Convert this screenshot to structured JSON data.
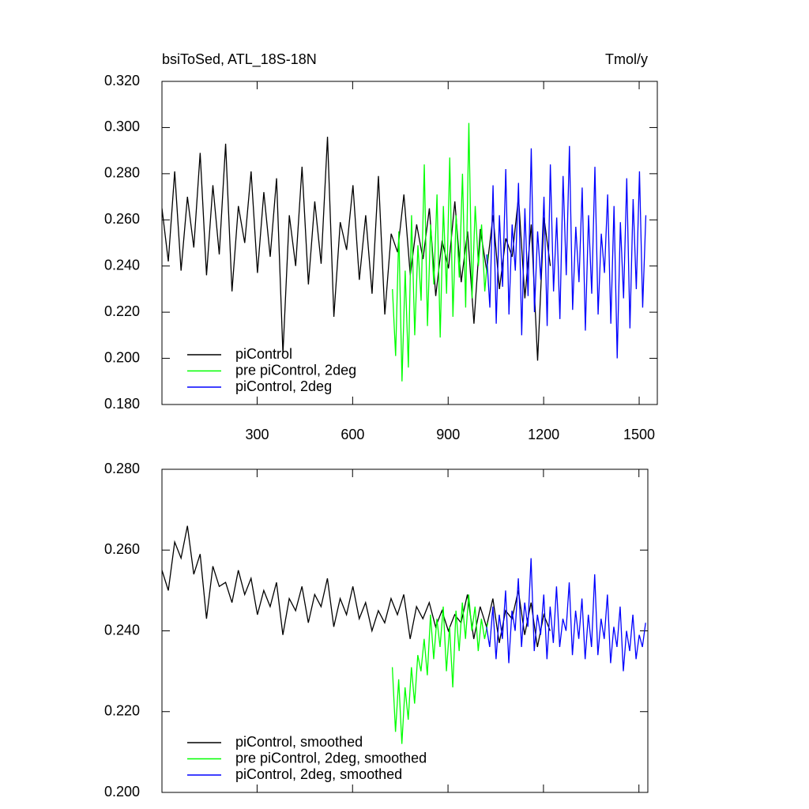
{
  "chart_data": [
    {
      "type": "line",
      "title": "bsiToSed, ATL_18S-18N",
      "units": "Tmol/y",
      "xlim": [
        1,
        1557
      ],
      "xticks": [
        300,
        600,
        900,
        1200,
        1500
      ],
      "ylim": [
        0.18,
        0.32
      ],
      "yticks": [
        {
          "value": 0.18,
          "label": "0.180"
        },
        {
          "value": 0.2,
          "label": "0.200"
        },
        {
          "value": 0.22,
          "label": "0.220"
        },
        {
          "value": 0.24,
          "label": "0.240"
        },
        {
          "value": 0.26,
          "label": "0.260"
        },
        {
          "value": 0.28,
          "label": "0.280"
        },
        {
          "value": 0.3,
          "label": "0.300"
        },
        {
          "value": 0.32,
          "label": "0.320"
        }
      ],
      "xtick_labels": true,
      "legend": "lower-left",
      "series": [
        {
          "name": "piControl",
          "color": "#000000",
          "x": [
            1,
            21,
            41,
            61,
            81,
            101,
            121,
            141,
            161,
            181,
            201,
            221,
            241,
            261,
            281,
            301,
            321,
            341,
            361,
            381,
            401,
            421,
            441,
            461,
            481,
            501,
            521,
            541,
            561,
            581,
            601,
            621,
            641,
            661,
            681,
            701,
            721,
            741,
            761,
            781,
            801,
            821,
            841,
            861,
            881,
            901,
            921,
            941,
            961,
            981,
            1001,
            1021,
            1041,
            1061,
            1081,
            1101,
            1121,
            1141,
            1161,
            1181,
            1201,
            1221
          ],
          "values": [
            0.265,
            0.242,
            0.281,
            0.238,
            0.27,
            0.248,
            0.289,
            0.236,
            0.275,
            0.245,
            0.293,
            0.229,
            0.266,
            0.25,
            0.281,
            0.237,
            0.272,
            0.244,
            0.278,
            0.202,
            0.262,
            0.24,
            0.283,
            0.232,
            0.268,
            0.241,
            0.296,
            0.218,
            0.259,
            0.247,
            0.275,
            0.234,
            0.262,
            0.228,
            0.279,
            0.219,
            0.254,
            0.246,
            0.271,
            0.236,
            0.258,
            0.243,
            0.265,
            0.227,
            0.251,
            0.239,
            0.268,
            0.233,
            0.255,
            0.215,
            0.256,
            0.238,
            0.262,
            0.23,
            0.252,
            0.244,
            0.27,
            0.226,
            0.258,
            0.199,
            0.261,
            0.24
          ]
        },
        {
          "name": "pre piControl, 2deg",
          "color": "#00ff00",
          "x": [
            725,
            735,
            745,
            755,
            765,
            775,
            785,
            795,
            805,
            815,
            825,
            835,
            845,
            855,
            865,
            875,
            885,
            895,
            905,
            915,
            925,
            935,
            945,
            955,
            965,
            975,
            985,
            995,
            1005,
            1015,
            1025
          ],
          "values": [
            0.23,
            0.201,
            0.255,
            0.19,
            0.238,
            0.196,
            0.262,
            0.21,
            0.249,
            0.225,
            0.284,
            0.214,
            0.258,
            0.232,
            0.271,
            0.209,
            0.266,
            0.228,
            0.287,
            0.218,
            0.262,
            0.235,
            0.28,
            0.222,
            0.302,
            0.226,
            0.266,
            0.24,
            0.258,
            0.229,
            0.245
          ]
        },
        {
          "name": "piControl, 2deg",
          "color": "#0000ff",
          "x": [
            1021,
            1031,
            1041,
            1051,
            1061,
            1071,
            1081,
            1091,
            1101,
            1111,
            1121,
            1131,
            1141,
            1151,
            1161,
            1171,
            1181,
            1191,
            1201,
            1211,
            1221,
            1231,
            1241,
            1251,
            1261,
            1271,
            1281,
            1291,
            1301,
            1311,
            1321,
            1331,
            1341,
            1351,
            1361,
            1371,
            1381,
            1391,
            1401,
            1411,
            1421,
            1431,
            1441,
            1451,
            1461,
            1471,
            1481,
            1491,
            1501,
            1511,
            1521
          ],
          "values": [
            0.245,
            0.222,
            0.275,
            0.215,
            0.262,
            0.231,
            0.282,
            0.219,
            0.258,
            0.238,
            0.276,
            0.21,
            0.265,
            0.227,
            0.291,
            0.22,
            0.255,
            0.234,
            0.27,
            0.214,
            0.284,
            0.229,
            0.261,
            0.217,
            0.279,
            0.236,
            0.292,
            0.221,
            0.257,
            0.233,
            0.274,
            0.212,
            0.262,
            0.228,
            0.283,
            0.219,
            0.254,
            0.237,
            0.271,
            0.215,
            0.266,
            0.2,
            0.259,
            0.226,
            0.278,
            0.213,
            0.269,
            0.23,
            0.281,
            0.222,
            0.262
          ]
        }
      ]
    },
    {
      "type": "line",
      "xlim": [
        1,
        1528
      ],
      "xticks": [
        300,
        600,
        900,
        1200,
        1500
      ],
      "ylim": [
        0.2,
        0.28
      ],
      "yticks": [
        {
          "value": 0.2,
          "label": "0.200"
        },
        {
          "value": 0.22,
          "label": "0.220"
        },
        {
          "value": 0.24,
          "label": "0.240"
        },
        {
          "value": 0.26,
          "label": "0.260"
        },
        {
          "value": 0.28,
          "label": "0.280"
        }
      ],
      "xtick_labels": false,
      "legend": "lower-left",
      "series": [
        {
          "name": "piControl, smoothed",
          "color": "#000000",
          "x": [
            1,
            21,
            41,
            61,
            81,
            101,
            121,
            141,
            161,
            181,
            201,
            221,
            241,
            261,
            281,
            301,
            321,
            341,
            361,
            381,
            401,
            421,
            441,
            461,
            481,
            501,
            521,
            541,
            561,
            581,
            601,
            621,
            641,
            661,
            681,
            701,
            721,
            741,
            761,
            781,
            801,
            821,
            841,
            861,
            881,
            901,
            921,
            941,
            961,
            981,
            1001,
            1021,
            1041,
            1061,
            1081,
            1101,
            1121,
            1141,
            1161,
            1181,
            1201,
            1221
          ],
          "values": [
            0.255,
            0.25,
            0.262,
            0.258,
            0.266,
            0.254,
            0.259,
            0.243,
            0.256,
            0.251,
            0.252,
            0.247,
            0.255,
            0.249,
            0.253,
            0.244,
            0.25,
            0.246,
            0.252,
            0.239,
            0.248,
            0.245,
            0.251,
            0.242,
            0.249,
            0.246,
            0.253,
            0.241,
            0.248,
            0.244,
            0.251,
            0.243,
            0.247,
            0.24,
            0.245,
            0.242,
            0.248,
            0.244,
            0.249,
            0.238,
            0.246,
            0.243,
            0.247,
            0.241,
            0.245,
            0.24,
            0.244,
            0.242,
            0.249,
            0.238,
            0.246,
            0.241,
            0.248,
            0.237,
            0.245,
            0.243,
            0.25,
            0.239,
            0.247,
            0.236,
            0.244,
            0.24
          ]
        },
        {
          "name": "pre piControl, 2deg, smoothed",
          "color": "#00ff00",
          "x": [
            725,
            735,
            745,
            755,
            765,
            775,
            785,
            795,
            805,
            815,
            825,
            835,
            845,
            855,
            865,
            875,
            885,
            895,
            905,
            915,
            925,
            935,
            945,
            955,
            965,
            975,
            985,
            995,
            1005,
            1015,
            1025
          ],
          "values": [
            0.231,
            0.215,
            0.228,
            0.212,
            0.226,
            0.218,
            0.231,
            0.222,
            0.234,
            0.23,
            0.238,
            0.229,
            0.244,
            0.233,
            0.243,
            0.236,
            0.246,
            0.23,
            0.241,
            0.226,
            0.245,
            0.235,
            0.247,
            0.238,
            0.249,
            0.24,
            0.246,
            0.235,
            0.243,
            0.238,
            0.242
          ]
        },
        {
          "name": "piControl, 2deg, smoothed",
          "color": "#0000ff",
          "x": [
            1021,
            1031,
            1041,
            1051,
            1061,
            1071,
            1081,
            1091,
            1101,
            1111,
            1121,
            1131,
            1141,
            1151,
            1161,
            1171,
            1181,
            1191,
            1201,
            1211,
            1221,
            1231,
            1241,
            1251,
            1261,
            1271,
            1281,
            1291,
            1301,
            1311,
            1321,
            1331,
            1341,
            1351,
            1361,
            1371,
            1381,
            1391,
            1401,
            1411,
            1421,
            1431,
            1441,
            1451,
            1461,
            1471,
            1481,
            1491,
            1501,
            1511,
            1521
          ],
          "values": [
            0.241,
            0.236,
            0.246,
            0.233,
            0.244,
            0.238,
            0.25,
            0.232,
            0.245,
            0.24,
            0.253,
            0.236,
            0.247,
            0.241,
            0.258,
            0.235,
            0.244,
            0.239,
            0.249,
            0.233,
            0.246,
            0.237,
            0.251,
            0.236,
            0.243,
            0.24,
            0.252,
            0.234,
            0.245,
            0.238,
            0.248,
            0.233,
            0.244,
            0.236,
            0.254,
            0.234,
            0.243,
            0.238,
            0.249,
            0.232,
            0.241,
            0.236,
            0.246,
            0.23,
            0.24,
            0.235,
            0.244,
            0.233,
            0.239,
            0.236,
            0.242
          ]
        }
      ]
    }
  ]
}
